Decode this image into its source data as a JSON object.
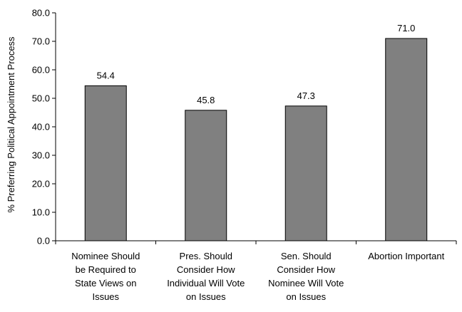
{
  "chart_data": {
    "type": "bar",
    "title": "",
    "xlabel": "",
    "ylabel": "% Preferring Political Appointment Process",
    "ylim": [
      0,
      80
    ],
    "yticks": [
      "0.0",
      "10.0",
      "20.0",
      "30.0",
      "40.0",
      "50.0",
      "60.0",
      "70.0",
      "80.0"
    ],
    "categories": [
      [
        "Nominee Should",
        "be Required to",
        "State Views on",
        "Issues"
      ],
      [
        "Pres. Should",
        "Consider How",
        "Individual Will Vote",
        "on Issues"
      ],
      [
        "Sen. Should",
        "Consider How",
        "Nominee Will Vote",
        "on Issues"
      ],
      [
        "Abortion Important"
      ]
    ],
    "values": [
      54.4,
      45.8,
      47.3,
      71.0
    ],
    "value_labels": [
      "54.4",
      "45.8",
      "47.3",
      "71.0"
    ],
    "grid": false,
    "legend": "none",
    "colors": {
      "bar": "#808080",
      "bar_stroke": "#000000",
      "axis": "#000000"
    }
  }
}
